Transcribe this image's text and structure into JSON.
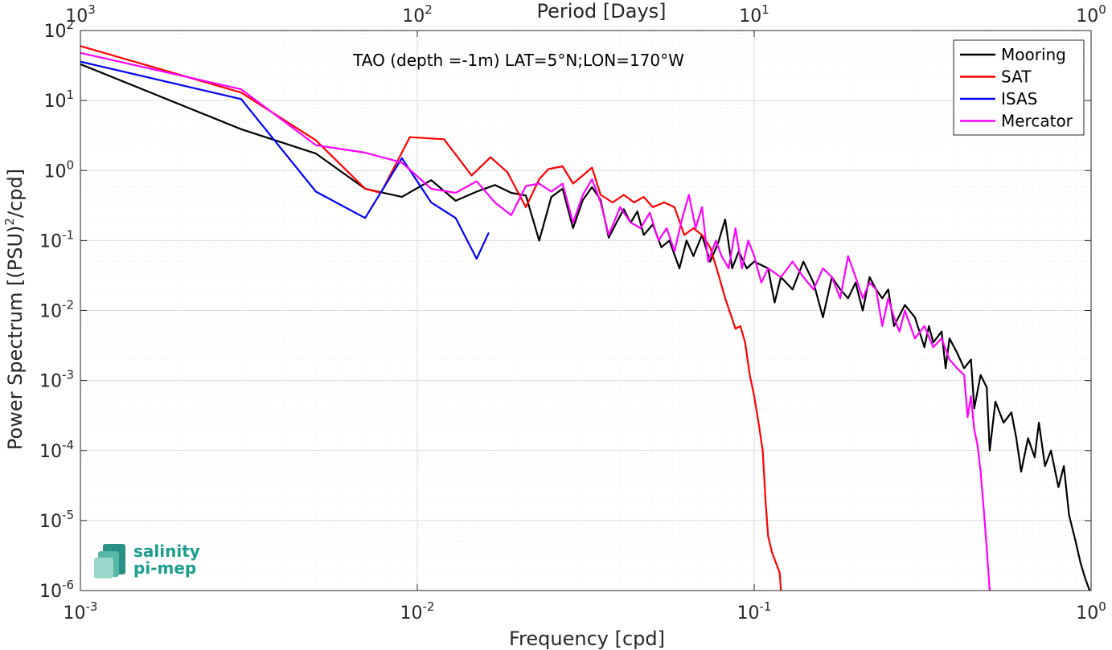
{
  "chart_data": {
    "type": "line",
    "title": "",
    "annotation": "TAO (depth =-1m) LAT=5°N;LON=170°W",
    "xlabel": "Frequency [cpd]",
    "ylabel": "Power Spectrum [(PSU)",
    "ylabel_sup": "2",
    "ylabel_tail": "/cpd]",
    "top_xlabel": "Period [Days]",
    "xscale": "log",
    "yscale": "log",
    "xlim": [
      0.001,
      1
    ],
    "ylim": [
      1e-06,
      100
    ],
    "grid": true,
    "legend_position": "top-right",
    "x_ticks": [
      {
        "value": 0.001,
        "base": "10",
        "exp": "-3"
      },
      {
        "value": 0.01,
        "base": "10",
        "exp": "-2"
      },
      {
        "value": 0.1,
        "base": "10",
        "exp": "-1"
      },
      {
        "value": 1,
        "base": "10",
        "exp": "0"
      }
    ],
    "top_ticks": [
      {
        "value": 0.001,
        "base": "10",
        "exp": "3"
      },
      {
        "value": 0.01,
        "base": "10",
        "exp": "2"
      },
      {
        "value": 0.1,
        "base": "10",
        "exp": "1"
      },
      {
        "value": 1,
        "base": "10",
        "exp": "0"
      }
    ],
    "y_ticks": [
      {
        "value": 100,
        "base": "10",
        "exp": "2"
      },
      {
        "value": 10,
        "base": "10",
        "exp": "1"
      },
      {
        "value": 1,
        "base": "10",
        "exp": "0"
      },
      {
        "value": 0.1,
        "base": "10",
        "exp": "-1"
      },
      {
        "value": 0.01,
        "base": "10",
        "exp": "-2"
      },
      {
        "value": 0.001,
        "base": "10",
        "exp": "-3"
      },
      {
        "value": 0.0001,
        "base": "10",
        "exp": "-4"
      },
      {
        "value": 1e-05,
        "base": "10",
        "exp": "-5"
      },
      {
        "value": 1e-06,
        "base": "10",
        "exp": "-6"
      }
    ],
    "series": [
      {
        "name": "Mooring",
        "color": "#000000",
        "points": [
          [
            0.001,
            33
          ],
          [
            0.003,
            3.9
          ],
          [
            0.005,
            1.75
          ],
          [
            0.007,
            0.55
          ],
          [
            0.009,
            0.42
          ],
          [
            0.011,
            0.73
          ],
          [
            0.013,
            0.37
          ],
          [
            0.015,
            0.5
          ],
          [
            0.017,
            0.62
          ],
          [
            0.019,
            0.48
          ],
          [
            0.021,
            0.44
          ],
          [
            0.023,
            0.1
          ],
          [
            0.025,
            0.42
          ],
          [
            0.027,
            0.55
          ],
          [
            0.029,
            0.15
          ],
          [
            0.031,
            0.38
          ],
          [
            0.033,
            0.58
          ],
          [
            0.035,
            0.38
          ],
          [
            0.037,
            0.11
          ],
          [
            0.039,
            0.18
          ],
          [
            0.041,
            0.28
          ],
          [
            0.043,
            0.18
          ],
          [
            0.045,
            0.26
          ],
          [
            0.047,
            0.12
          ],
          [
            0.05,
            0.17
          ],
          [
            0.053,
            0.08
          ],
          [
            0.056,
            0.1
          ],
          [
            0.06,
            0.04
          ],
          [
            0.063,
            0.1
          ],
          [
            0.066,
            0.06
          ],
          [
            0.07,
            0.12
          ],
          [
            0.074,
            0.05
          ],
          [
            0.078,
            0.09
          ],
          [
            0.082,
            0.2
          ],
          [
            0.086,
            0.04
          ],
          [
            0.09,
            0.07
          ],
          [
            0.095,
            0.04
          ],
          [
            0.1,
            0.05
          ],
          [
            0.11,
            0.04
          ],
          [
            0.115,
            0.013
          ],
          [
            0.12,
            0.03
          ],
          [
            0.13,
            0.02
          ],
          [
            0.14,
            0.05
          ],
          [
            0.15,
            0.025
          ],
          [
            0.16,
            0.008
          ],
          [
            0.17,
            0.03
          ],
          [
            0.18,
            0.02
          ],
          [
            0.19,
            0.015
          ],
          [
            0.2,
            0.025
          ],
          [
            0.21,
            0.01
          ],
          [
            0.22,
            0.03
          ],
          [
            0.23,
            0.02
          ],
          [
            0.24,
            0.015
          ],
          [
            0.25,
            0.02
          ],
          [
            0.26,
            0.006
          ],
          [
            0.28,
            0.012
          ],
          [
            0.3,
            0.008
          ],
          [
            0.32,
            0.003
          ],
          [
            0.33,
            0.006
          ],
          [
            0.34,
            0.0035
          ],
          [
            0.36,
            0.005
          ],
          [
            0.37,
            0.0015
          ],
          [
            0.38,
            0.004
          ],
          [
            0.4,
            0.0025
          ],
          [
            0.42,
            0.0015
          ],
          [
            0.44,
            0.002
          ],
          [
            0.45,
            0.0004
          ],
          [
            0.47,
            0.0012
          ],
          [
            0.49,
            0.0008
          ],
          [
            0.5,
            0.0001
          ],
          [
            0.52,
            0.0005
          ],
          [
            0.55,
            0.00025
          ],
          [
            0.58,
            0.00035
          ],
          [
            0.6,
            0.00015
          ],
          [
            0.62,
            5e-05
          ],
          [
            0.65,
            0.00015
          ],
          [
            0.68,
            8e-05
          ],
          [
            0.7,
            0.00025
          ],
          [
            0.73,
            6e-05
          ],
          [
            0.76,
            0.0001
          ],
          [
            0.8,
            3e-05
          ],
          [
            0.83,
            6e-05
          ],
          [
            0.86,
            1.2e-05
          ],
          [
            0.9,
            5e-06
          ],
          [
            0.93,
            2.5e-06
          ],
          [
            0.96,
            1.5e-06
          ],
          [
            0.99,
            1e-06
          ]
        ]
      },
      {
        "name": "SAT",
        "color": "#ff0000",
        "points": [
          [
            0.001,
            60
          ],
          [
            0.003,
            13
          ],
          [
            0.005,
            2.7
          ],
          [
            0.007,
            0.55
          ],
          [
            0.0078,
            0.48
          ],
          [
            0.0095,
            3
          ],
          [
            0.012,
            2.8
          ],
          [
            0.0145,
            0.85
          ],
          [
            0.0165,
            1.55
          ],
          [
            0.0185,
            0.95
          ],
          [
            0.021,
            0.3
          ],
          [
            0.023,
            0.75
          ],
          [
            0.0245,
            1.05
          ],
          [
            0.027,
            1.15
          ],
          [
            0.029,
            0.65
          ],
          [
            0.031,
            0.85
          ],
          [
            0.033,
            1.1
          ],
          [
            0.035,
            0.45
          ],
          [
            0.038,
            0.35
          ],
          [
            0.041,
            0.45
          ],
          [
            0.044,
            0.35
          ],
          [
            0.047,
            0.42
          ],
          [
            0.05,
            0.3
          ],
          [
            0.054,
            0.35
          ],
          [
            0.058,
            0.3
          ],
          [
            0.062,
            0.12
          ],
          [
            0.066,
            0.15
          ],
          [
            0.07,
            0.12
          ],
          [
            0.074,
            0.08
          ],
          [
            0.078,
            0.035
          ],
          [
            0.082,
            0.015
          ],
          [
            0.085,
            0.009
          ],
          [
            0.088,
            0.0055
          ],
          [
            0.091,
            0.006
          ],
          [
            0.094,
            0.0035
          ],
          [
            0.097,
            0.0012
          ],
          [
            0.1,
            0.0006
          ],
          [
            0.103,
            0.00025
          ],
          [
            0.106,
            0.0001
          ],
          [
            0.108,
            2e-05
          ],
          [
            0.11,
            6e-06
          ],
          [
            0.113,
            3.5e-06
          ],
          [
            0.116,
            2.5e-06
          ],
          [
            0.119,
            1.8e-06
          ],
          [
            0.12,
            1e-06
          ]
        ]
      },
      {
        "name": "ISAS",
        "color": "#0000ff",
        "points": [
          [
            0.001,
            36
          ],
          [
            0.003,
            10.5
          ],
          [
            0.005,
            0.5
          ],
          [
            0.007,
            0.21
          ],
          [
            0.009,
            1.5
          ],
          [
            0.011,
            0.35
          ],
          [
            0.013,
            0.21
          ],
          [
            0.015,
            0.055
          ],
          [
            0.0163,
            0.13
          ]
        ]
      },
      {
        "name": "Mercator",
        "color": "#ff00ff",
        "points": [
          [
            0.001,
            48
          ],
          [
            0.003,
            14.5
          ],
          [
            0.005,
            2.3
          ],
          [
            0.007,
            1.8
          ],
          [
            0.009,
            1.3
          ],
          [
            0.011,
            0.55
          ],
          [
            0.013,
            0.48
          ],
          [
            0.015,
            0.7
          ],
          [
            0.017,
            0.35
          ],
          [
            0.019,
            0.23
          ],
          [
            0.021,
            0.6
          ],
          [
            0.023,
            0.65
          ],
          [
            0.025,
            0.5
          ],
          [
            0.027,
            0.65
          ],
          [
            0.029,
            0.18
          ],
          [
            0.031,
            0.45
          ],
          [
            0.033,
            0.75
          ],
          [
            0.035,
            0.35
          ],
          [
            0.037,
            0.12
          ],
          [
            0.04,
            0.3
          ],
          [
            0.043,
            0.18
          ],
          [
            0.046,
            0.15
          ],
          [
            0.049,
            0.25
          ],
          [
            0.052,
            0.1
          ],
          [
            0.055,
            0.15
          ],
          [
            0.058,
            0.07
          ],
          [
            0.061,
            0.2
          ],
          [
            0.064,
            0.45
          ],
          [
            0.067,
            0.15
          ],
          [
            0.07,
            0.3
          ],
          [
            0.073,
            0.05
          ],
          [
            0.077,
            0.1
          ],
          [
            0.08,
            0.06
          ],
          [
            0.084,
            0.04
          ],
          [
            0.088,
            0.15
          ],
          [
            0.092,
            0.04
          ],
          [
            0.096,
            0.1
          ],
          [
            0.1,
            0.06
          ],
          [
            0.105,
            0.025
          ],
          [
            0.11,
            0.04
          ],
          [
            0.12,
            0.03
          ],
          [
            0.13,
            0.05
          ],
          [
            0.14,
            0.03
          ],
          [
            0.15,
            0.02
          ],
          [
            0.16,
            0.04
          ],
          [
            0.17,
            0.03
          ],
          [
            0.18,
            0.015
          ],
          [
            0.19,
            0.06
          ],
          [
            0.2,
            0.03
          ],
          [
            0.21,
            0.015
          ],
          [
            0.22,
            0.025
          ],
          [
            0.23,
            0.02
          ],
          [
            0.24,
            0.006
          ],
          [
            0.25,
            0.015
          ],
          [
            0.26,
            0.008
          ],
          [
            0.27,
            0.005
          ],
          [
            0.28,
            0.01
          ],
          [
            0.3,
            0.004
          ],
          [
            0.32,
            0.006
          ],
          [
            0.34,
            0.003
          ],
          [
            0.36,
            0.004
          ],
          [
            0.38,
            0.002
          ],
          [
            0.4,
            0.0015
          ],
          [
            0.42,
            0.0012
          ],
          [
            0.43,
            0.0003
          ],
          [
            0.44,
            0.0006
          ],
          [
            0.45,
            0.0002
          ],
          [
            0.46,
            0.00012
          ],
          [
            0.47,
            5e-05
          ],
          [
            0.48,
            1.5e-05
          ],
          [
            0.49,
            4e-06
          ],
          [
            0.5,
            1e-06
          ]
        ]
      }
    ]
  },
  "logo": {
    "line1": "salinity",
    "line2": "pi-mep"
  }
}
